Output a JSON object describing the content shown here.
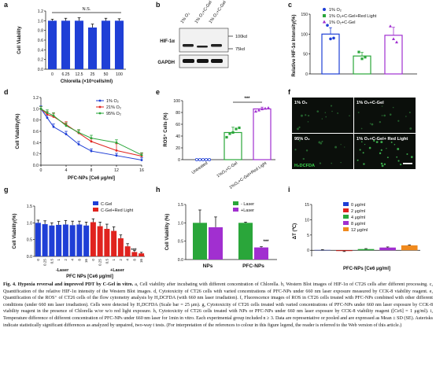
{
  "panels": [
    {
      "id": "a",
      "letter": "a"
    },
    {
      "id": "b",
      "letter": "b"
    },
    {
      "id": "c",
      "letter": "c"
    },
    {
      "id": "d",
      "letter": "d"
    },
    {
      "id": "e",
      "letter": "e"
    },
    {
      "id": "f",
      "letter": "f"
    },
    {
      "id": "g",
      "letter": "g"
    },
    {
      "id": "h",
      "letter": "h"
    },
    {
      "id": "i",
      "letter": "i"
    }
  ],
  "colors": {
    "blue": "#1f3fd6",
    "red": "#e0231e",
    "green": "#2aa63a",
    "purple": "#a12fd0",
    "black": "#111111",
    "fluor": "#0b0f0b"
  },
  "chart_data": [
    {
      "panel": "a",
      "type": "bar",
      "categories": [
        "0",
        "6.25",
        "12.5",
        "25",
        "50",
        "100"
      ],
      "values": [
        1.0,
        1.0,
        1.0,
        0.86,
        1.0,
        1.0
      ],
      "errors": [
        0.03,
        0.05,
        0.06,
        0.07,
        0.05,
        0.04
      ],
      "ylabel": "Cell Viability",
      "xlabel": "Chlorella (×10⁶cells/ml)",
      "ylim": [
        0,
        1.2
      ],
      "yticks": [
        "0.0",
        "0.2",
        "0.4",
        "0.6",
        "0.8",
        "1.0",
        "1.2"
      ],
      "annotation": "N.S."
    },
    {
      "panel": "b",
      "type": "table",
      "columns": [
        "1% O₂",
        "1% O₂+C-Gel +Red Light",
        "1% O₂+C-Gel"
      ],
      "rows": [
        "HIF-1α",
        "GAPDH"
      ],
      "markers": [
        "100kd",
        "75kd"
      ]
    },
    {
      "panel": "c",
      "type": "scatter",
      "categories": [
        "1% O₂",
        "1% O₂+C-Gel+Red Light",
        "1% O₂+C-Gel"
      ],
      "means": [
        100,
        45,
        97
      ],
      "errors": [
        16,
        9,
        20
      ],
      "points": [
        [
          122,
          88,
          90
        ],
        [
          55,
          38,
          42
        ],
        [
          120,
          88,
          80
        ]
      ],
      "ylabel": "Relative HIF-1α Intensity(%)",
      "ylim": [
        0,
        150
      ],
      "yticks": [
        "0",
        "50",
        "100",
        "150"
      ]
    },
    {
      "panel": "d",
      "type": "line",
      "x": [
        0,
        1,
        2,
        4,
        6,
        8,
        12,
        16
      ],
      "series": [
        {
          "name": "1% O₂",
          "values": [
            1.0,
            0.84,
            0.68,
            0.55,
            0.37,
            0.25,
            0.17,
            0.09
          ],
          "errors": [
            0.05,
            0.05,
            0.05,
            0.05,
            0.05,
            0.04,
            0.04,
            0.04
          ]
        },
        {
          "name": "21% O₂",
          "values": [
            1.0,
            0.9,
            0.86,
            0.72,
            0.57,
            0.42,
            0.26,
            0.16
          ],
          "errors": [
            0.04,
            0.05,
            0.06,
            0.05,
            0.05,
            0.05,
            0.12,
            0.05
          ]
        },
        {
          "name": "95% O₂",
          "values": [
            1.0,
            0.93,
            0.88,
            0.7,
            0.58,
            0.48,
            0.4,
            0.18
          ],
          "errors": [
            0.04,
            0.05,
            0.05,
            0.05,
            0.05,
            0.05,
            0.05,
            0.04
          ]
        }
      ],
      "ylabel": "Cell Viability(%)",
      "xlabel": "PFC-NPs [Ce6 μg/ml]",
      "ylim": [
        0,
        1.2
      ],
      "yticks": [
        "0.0",
        "0.2",
        "0.4",
        "0.6",
        "0.8",
        "1.0",
        "1.2"
      ],
      "xticks": [
        "0",
        "4",
        "8",
        "12",
        "16"
      ]
    },
    {
      "panel": "e",
      "type": "scatter",
      "categories": [
        "Untreated",
        "1%O₂+C-Gel",
        "1%O₂+C-Gel+Red Light"
      ],
      "means": [
        0,
        46,
        86
      ],
      "errors": [
        0,
        9,
        3
      ],
      "points": [
        [
          0,
          0,
          0,
          0,
          0
        ],
        [
          38,
          44,
          46,
          52,
          54
        ],
        [
          82,
          84,
          86,
          87,
          88
        ]
      ],
      "ylabel": "ROS⁺ Cells (%)",
      "ylim": [
        0,
        100
      ],
      "yticks": [
        "0",
        "20",
        "40",
        "60",
        "80",
        "100"
      ],
      "annotation": "***"
    },
    {
      "panel": "g",
      "type": "bar",
      "categories": [
        "0",
        "0.25",
        "0.5",
        "1",
        "2",
        "4",
        "8",
        "16"
      ],
      "series": [
        {
          "name": "C-Gel",
          "values": [
            1.0,
            0.96,
            0.92,
            0.94,
            0.95,
            0.93,
            0.95,
            0.92
          ],
          "errors": [
            0.08,
            0.1,
            0.08,
            0.1,
            0.12,
            0.12,
            0.1,
            0.1
          ]
        },
        {
          "name": "C-Gel+Red Light",
          "values": [
            1.02,
            0.9,
            0.82,
            0.76,
            0.54,
            0.3,
            0.13,
            0.09
          ],
          "errors": [
            0.1,
            0.12,
            0.14,
            0.12,
            0.1,
            0.08,
            0.05,
            0.03
          ]
        }
      ],
      "ylabel": "Cell Viability(%)",
      "xlabel": "PFC NPs [Ce6 μg/ml]",
      "group_labels": [
        "-Laser",
        "+Laser"
      ],
      "ylim": [
        0,
        1.5
      ],
      "yticks": [
        "0.0",
        "0.5",
        "1.0",
        "1.5"
      ],
      "annotation": "***"
    },
    {
      "panel": "h",
      "type": "bar",
      "categories": [
        "NPs",
        "PFC-NPs"
      ],
      "series": [
        {
          "name": "- Laser",
          "values": [
            1.0,
            1.0
          ],
          "errors": [
            0.35,
            0.02
          ]
        },
        {
          "name": "+Laser",
          "values": [
            0.88,
            0.33
          ],
          "errors": [
            0.28,
            0.02
          ]
        }
      ],
      "ylabel": "Cell Viability (%)",
      "ylim": [
        0,
        1.5
      ],
      "yticks": [
        "0.0",
        "0.5",
        "1.0",
        "1.5"
      ],
      "annotation": "***"
    },
    {
      "panel": "i",
      "type": "bar",
      "categories": [
        "0 μg/ml",
        "2 μg/ml",
        "4 μg/ml",
        "8 μg/ml",
        "12 μg/ml"
      ],
      "values": [
        0.1,
        -0.25,
        0.4,
        0.9,
        1.6
      ],
      "errors": [
        0.1,
        0.15,
        0.15,
        0.2,
        0.15
      ],
      "ylabel": "ΔT (℃)",
      "xlabel": "PFC-NPs [Ce6 μg/ml]",
      "ylim": [
        -2,
        15
      ],
      "yticks": [
        "0",
        "5",
        "10",
        "15"
      ]
    }
  ],
  "fluor": {
    "tiles": [
      "1% O₂",
      "1% O₂+C-Gel",
      "95% O₂",
      "1% O₂+C-Gel+ Red Light"
    ],
    "stain": "H₂DCFDA"
  },
  "caption": {
    "lead": "Fig. 4.",
    "title": "Hypoxia reversal and improved PDT by C-Gel in vitro.",
    "body": "a, Cell viability after incubating with different concentration of Chlorella. b, Western Blot images of HIF-1α of CT26 cells after different processing. c, Quantification of the relative HIF-1α intensity of the Western Blot images. d, Cytotoxicity of CT26 cells with varied concentrations of PFC-NPs under 660 nm laser exposure measured by CCK-8 viability reagent. e, Quantification of the ROS⁺ of CT26 cells of the flow cytometry analysis by H₂DCFDA (with 660 nm laser irradiation). f, Fluorescence images of ROS in CT26 cells treated with PFC-NPs combined with other different conditions (under 660 nm laser irradiation). Cells were detected by H₂DCFDA (Scale bar = 25 μm). g, Cytotoxicity of CT26 cells treated with varied concentrations of PFC-NPs under 660 nm laser exposure by CCK-8 viability reagent in the presence of Chlorella w/or w/o red light exposure. h, Cytotoxicity of CT26 cells treated with NPs or PFC-NPs under 660 nm laser exposure by CCK-8 viability reagent ([Ce6] = 1 μg/ml). i, Temperature difference of different concentration of PFC-NPs under 660 nm laser for 1min in vitro. Each experimental group included n ≥ 3. Data are representative or pooled and are expressed as Mean ± SD (SE). Asterisks indicate statistically significant differences as analyzed by unpaired, two-way t tests. (For interpretation of the references to colour in this figure legend, the reader is referred to the Web version of this article.)"
  }
}
